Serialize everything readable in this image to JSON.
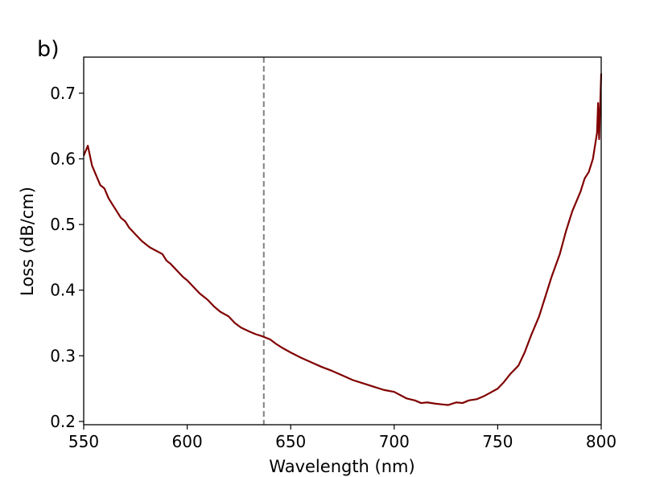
{
  "panel_label": "b)",
  "chart_data": {
    "type": "line",
    "xlabel": "Wavelength (nm)",
    "ylabel": "Loss (dB/cm)",
    "xlim": [
      550,
      800
    ],
    "ylim": [
      0.195,
      0.755
    ],
    "xticks": [
      550,
      600,
      650,
      700,
      750,
      800
    ],
    "yticks": [
      0.2,
      0.3,
      0.4,
      0.5,
      0.6,
      0.7
    ],
    "xtick_labels": [
      "550",
      "600",
      "650",
      "700",
      "750",
      "800"
    ],
    "ytick_labels": [
      "0.2",
      "0.3",
      "0.4",
      "0.5",
      "0.6",
      "0.7"
    ],
    "grid": false,
    "vline": {
      "x": 637,
      "style": "dashed",
      "color": "#808080"
    },
    "series": [
      {
        "color": "#800000",
        "x": [
          550,
          552,
          554,
          556,
          558,
          560,
          562,
          565,
          568,
          570,
          572,
          575,
          578,
          580,
          582,
          585,
          588,
          590,
          592,
          595,
          598,
          600,
          603,
          606,
          610,
          613,
          616,
          620,
          623,
          626,
          630,
          633,
          636,
          640,
          643,
          646,
          650,
          655,
          660,
          665,
          670,
          675,
          680,
          685,
          690,
          695,
          700,
          703,
          706,
          710,
          713,
          716,
          720,
          723,
          726,
          730,
          733,
          736,
          740,
          743,
          746,
          750,
          753,
          756,
          760,
          763,
          766,
          770,
          773,
          776,
          780,
          783,
          786,
          790,
          792,
          794,
          796,
          797,
          798,
          798.5,
          799,
          799.5,
          800
        ],
        "y": [
          0.605,
          0.62,
          0.59,
          0.575,
          0.56,
          0.555,
          0.54,
          0.525,
          0.51,
          0.505,
          0.495,
          0.485,
          0.475,
          0.47,
          0.465,
          0.46,
          0.455,
          0.445,
          0.44,
          0.43,
          0.42,
          0.415,
          0.405,
          0.395,
          0.385,
          0.375,
          0.367,
          0.36,
          0.35,
          0.343,
          0.337,
          0.333,
          0.33,
          0.325,
          0.318,
          0.312,
          0.305,
          0.297,
          0.29,
          0.283,
          0.277,
          0.27,
          0.263,
          0.258,
          0.253,
          0.248,
          0.245,
          0.24,
          0.235,
          0.232,
          0.228,
          0.229,
          0.227,
          0.226,
          0.225,
          0.229,
          0.228,
          0.232,
          0.234,
          0.238,
          0.243,
          0.25,
          0.26,
          0.272,
          0.285,
          0.305,
          0.33,
          0.36,
          0.39,
          0.42,
          0.455,
          0.49,
          0.52,
          0.55,
          0.57,
          0.58,
          0.6,
          0.62,
          0.64,
          0.685,
          0.63,
          0.68,
          0.73
        ]
      }
    ]
  }
}
